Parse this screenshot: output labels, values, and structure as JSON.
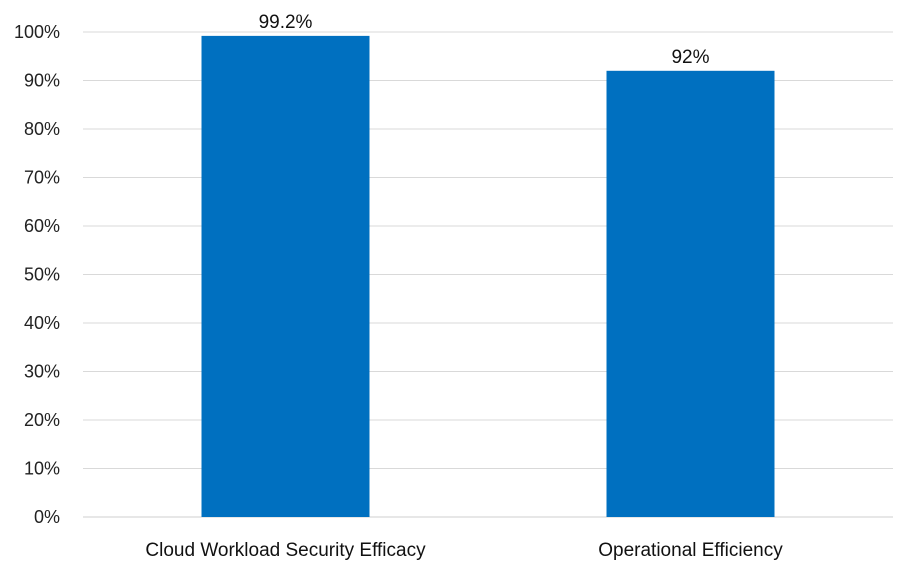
{
  "chart_data": {
    "type": "bar",
    "categories": [
      "Cloud Workload Security Efficacy",
      "Operational Efficiency"
    ],
    "values": [
      99.2,
      92
    ],
    "data_labels": [
      "99.2%",
      "92%"
    ],
    "ylim": [
      0,
      100
    ],
    "y_ticks": [
      0,
      10,
      20,
      30,
      40,
      50,
      60,
      70,
      80,
      90,
      100
    ],
    "y_tick_labels": [
      "0%",
      "10%",
      "20%",
      "30%",
      "40%",
      "50%",
      "60%",
      "70%",
      "80%",
      "90%",
      "100%"
    ],
    "grid": true,
    "legend": "none",
    "bar_color": "#0070c0",
    "gridline_color": "#d9d9d9",
    "text_color": "#111111"
  }
}
